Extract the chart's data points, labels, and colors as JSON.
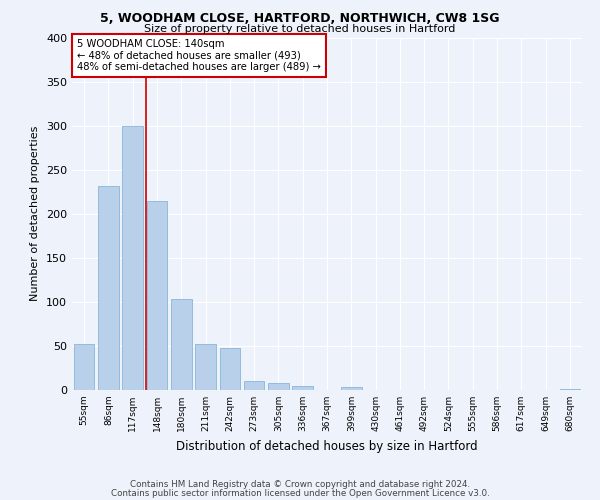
{
  "title1": "5, WOODHAM CLOSE, HARTFORD, NORTHWICH, CW8 1SG",
  "title2": "Size of property relative to detached houses in Hartford",
  "xlabel": "Distribution of detached houses by size in Hartford",
  "ylabel": "Number of detached properties",
  "footnote1": "Contains HM Land Registry data © Crown copyright and database right 2024.",
  "footnote2": "Contains public sector information licensed under the Open Government Licence v3.0.",
  "categories": [
    "55sqm",
    "86sqm",
    "117sqm",
    "148sqm",
    "180sqm",
    "211sqm",
    "242sqm",
    "273sqm",
    "305sqm",
    "336sqm",
    "367sqm",
    "399sqm",
    "430sqm",
    "461sqm",
    "492sqm",
    "524sqm",
    "555sqm",
    "586sqm",
    "617sqm",
    "649sqm",
    "680sqm"
  ],
  "values": [
    52,
    232,
    300,
    215,
    103,
    52,
    48,
    10,
    8,
    5,
    0,
    3,
    0,
    0,
    0,
    0,
    0,
    0,
    0,
    0,
    1
  ],
  "bar_color": "#b8d0ea",
  "bar_edge_color": "#7aadd4",
  "annotation_text_line1": "5 WOODHAM CLOSE: 140sqm",
  "annotation_text_line2": "← 48% of detached houses are smaller (493)",
  "annotation_text_line3": "48% of semi-detached houses are larger (489) →",
  "red_line_color": "#cc0000",
  "annotation_box_color": "#ffffff",
  "annotation_box_edge_color": "#cc0000",
  "bg_color": "#eef2fb",
  "ylim": [
    0,
    400
  ],
  "yticks": [
    0,
    50,
    100,
    150,
    200,
    250,
    300,
    350,
    400
  ]
}
